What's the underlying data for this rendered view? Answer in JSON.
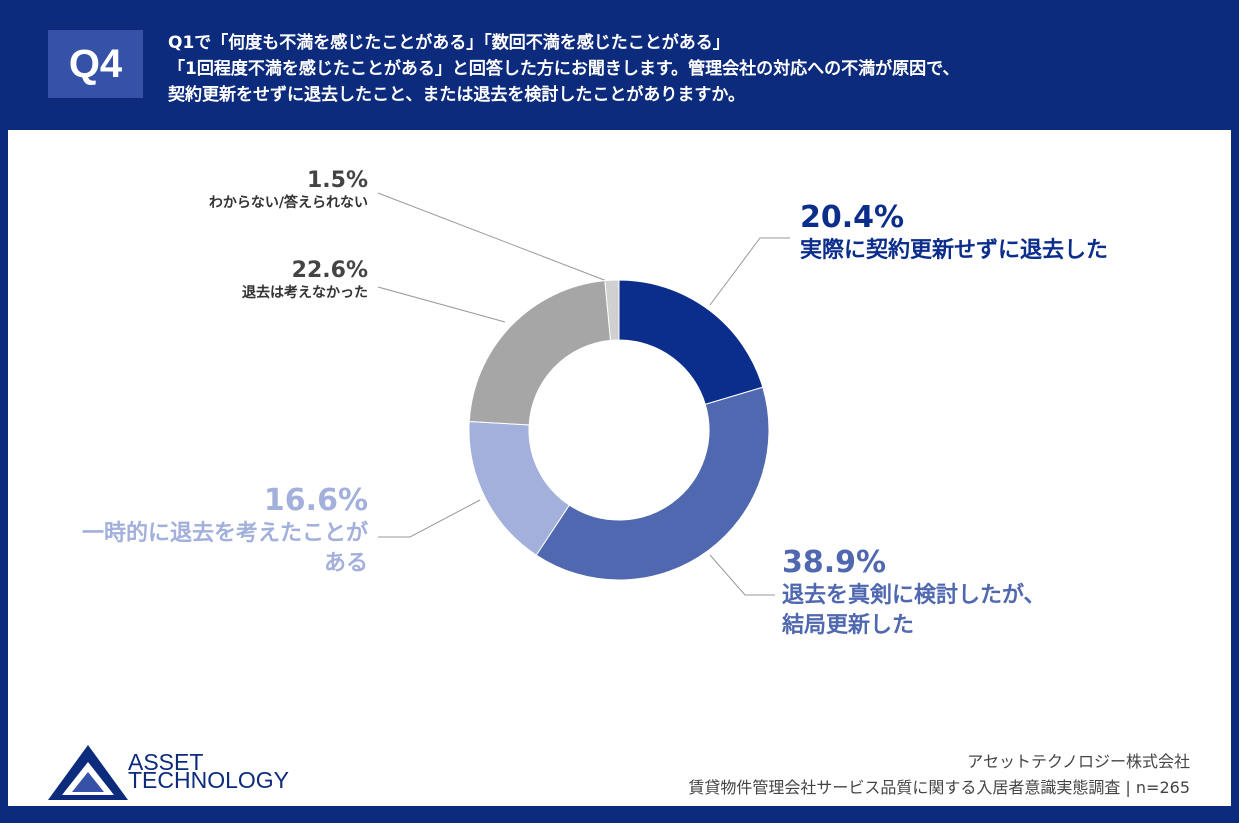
{
  "header": {
    "badge": "Q4",
    "question": [
      "Q1で「何度も不満を感じたことがある」「数回不満を感じたことがある」",
      "「1回程度不満を感じたことがある」と回答した方にお聞きします。管理会社の対応への不満が原因で、",
      "契約更新をせずに退去したこと、または退去を検討したことがありますか。"
    ]
  },
  "chart_data": {
    "type": "pie",
    "donut": true,
    "categories": [
      "実際に契約更新せずに退去した",
      "退去を真剣に検討したが、\n結局更新した",
      "一時的に退去を考えたことが\nある",
      "退去は考えなかった",
      "わからない/答えられない"
    ],
    "values": [
      20.4,
      38.9,
      16.6,
      22.6,
      1.5
    ],
    "value_labels": [
      "20.4%",
      "38.9%",
      "16.6%",
      "22.6%",
      "1.5%"
    ],
    "colors": [
      "#0b2d8c",
      "#5068b0",
      "#a3b0dc",
      "#a6a6a6",
      "#d0d0d0"
    ]
  },
  "footer": {
    "logo": [
      "ASSET",
      "TECHNOLOGY"
    ],
    "company": "アセットテクノロジー株式会社",
    "survey": "賃貸物件管理会社サービス品質に関する入居者意識実態調査 | n=265"
  }
}
